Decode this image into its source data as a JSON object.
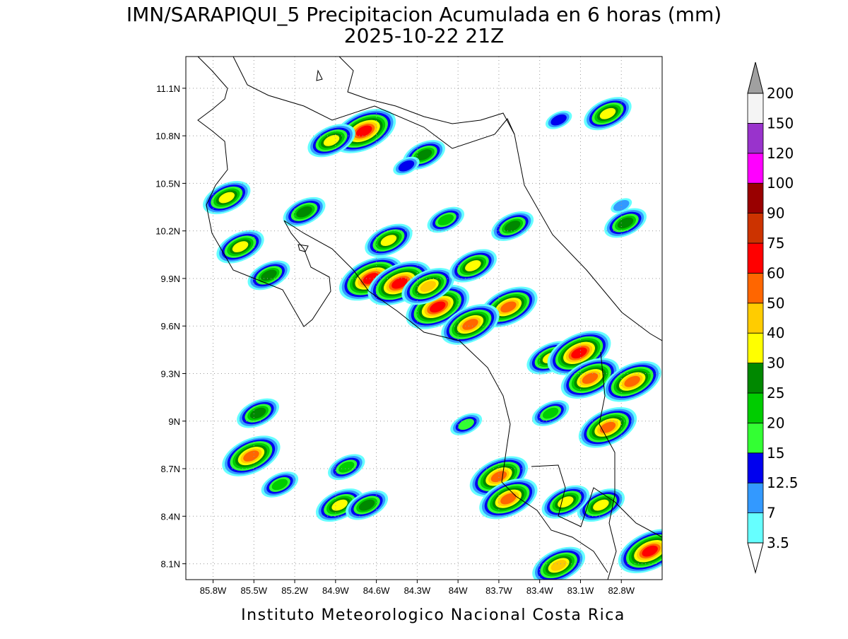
{
  "chart_data": {
    "type": "map",
    "title": "IMN/SARAPIQUI_5 Precipitacion Acumulada en 6 horas (mm)",
    "subtitle": "2025-10-22 21Z",
    "footer": "Instituto Meteorologico Nacional Costa Rica",
    "xlim": [
      -86.0,
      -82.5
    ],
    "ylim": [
      8.0,
      11.3
    ],
    "xticks": [
      {
        "value": -85.8,
        "label": "85.8W"
      },
      {
        "value": -85.5,
        "label": "85.5W"
      },
      {
        "value": -85.2,
        "label": "85.2W"
      },
      {
        "value": -84.9,
        "label": "84.9W"
      },
      {
        "value": -84.6,
        "label": "84.6W"
      },
      {
        "value": -84.3,
        "label": "84.3W"
      },
      {
        "value": -84.0,
        "label": "84W"
      },
      {
        "value": -83.7,
        "label": "83.7W"
      },
      {
        "value": -83.4,
        "label": "83.4W"
      },
      {
        "value": -83.1,
        "label": "83.1W"
      },
      {
        "value": -82.8,
        "label": "82.8W"
      }
    ],
    "yticks": [
      {
        "value": 8.1,
        "label": "8.1N"
      },
      {
        "value": 8.4,
        "label": "8.4N"
      },
      {
        "value": 8.7,
        "label": "8.7N"
      },
      {
        "value": 9.0,
        "label": "9N"
      },
      {
        "value": 9.3,
        "label": "9.3N"
      },
      {
        "value": 9.6,
        "label": "9.6N"
      },
      {
        "value": 9.9,
        "label": "9.9N"
      },
      {
        "value": 10.2,
        "label": "10.2N"
      },
      {
        "value": 10.5,
        "label": "10.5N"
      },
      {
        "value": 10.8,
        "label": "10.8N"
      },
      {
        "value": 11.1,
        "label": "11.1N"
      }
    ],
    "grid": true,
    "colorbar": {
      "levels": [
        3.5,
        7,
        12.5,
        15,
        20,
        25,
        30,
        40,
        50,
        60,
        75,
        90,
        100,
        120,
        150,
        200
      ],
      "colors": [
        "#66ffff",
        "#3399ff",
        "#0000ee",
        "#33ff33",
        "#00cc00",
        "#008800",
        "#ffff00",
        "#ffcc00",
        "#ff6600",
        "#ff0000",
        "#cc3300",
        "#990000",
        "#ff00ff",
        "#9933cc",
        "#f4f4f4"
      ],
      "under_color": "#ffffff",
      "over_color": "#a0a0a0"
    },
    "cells": [
      {
        "lon": -84.69,
        "lat": 10.83,
        "mm": 60
      },
      {
        "lon": -84.93,
        "lat": 10.77,
        "mm": 35
      },
      {
        "lon": -85.7,
        "lat": 10.41,
        "mm": 35
      },
      {
        "lon": -85.6,
        "lat": 10.1,
        "mm": 35
      },
      {
        "lon": -84.64,
        "lat": 9.9,
        "mm": 60
      },
      {
        "lon": -84.43,
        "lat": 9.87,
        "mm": 60
      },
      {
        "lon": -84.15,
        "lat": 9.72,
        "mm": 60
      },
      {
        "lon": -84.22,
        "lat": 9.85,
        "mm": 40
      },
      {
        "lon": -84.51,
        "lat": 10.14,
        "mm": 35
      },
      {
        "lon": -83.63,
        "lat": 9.72,
        "mm": 55
      },
      {
        "lon": -83.91,
        "lat": 9.61,
        "mm": 55
      },
      {
        "lon": -83.32,
        "lat": 9.4,
        "mm": 35
      },
      {
        "lon": -83.11,
        "lat": 9.43,
        "mm": 60
      },
      {
        "lon": -83.03,
        "lat": 9.27,
        "mm": 55
      },
      {
        "lon": -82.72,
        "lat": 9.25,
        "mm": 50
      },
      {
        "lon": -82.9,
        "lat": 8.96,
        "mm": 55
      },
      {
        "lon": -82.95,
        "lat": 8.47,
        "mm": 35
      },
      {
        "lon": -83.7,
        "lat": 8.65,
        "mm": 55
      },
      {
        "lon": -83.63,
        "lat": 8.51,
        "mm": 55
      },
      {
        "lon": -83.21,
        "lat": 8.49,
        "mm": 30
      },
      {
        "lon": -83.26,
        "lat": 8.09,
        "mm": 40
      },
      {
        "lon": -82.59,
        "lat": 8.18,
        "mm": 60
      },
      {
        "lon": -82.9,
        "lat": 10.94,
        "mm": 35
      },
      {
        "lon": -84.25,
        "lat": 10.68,
        "mm": 25
      },
      {
        "lon": -83.89,
        "lat": 9.98,
        "mm": 35
      },
      {
        "lon": -84.87,
        "lat": 8.47,
        "mm": 35
      },
      {
        "lon": -84.67,
        "lat": 8.47,
        "mm": 25
      },
      {
        "lon": -85.52,
        "lat": 8.78,
        "mm": 55
      },
      {
        "lon": -85.47,
        "lat": 9.05,
        "mm": 25
      },
      {
        "lon": -85.31,
        "lat": 8.6,
        "mm": 20
      },
      {
        "lon": -84.82,
        "lat": 8.71,
        "mm": 20
      },
      {
        "lon": -83.94,
        "lat": 8.98,
        "mm": 15
      },
      {
        "lon": -83.6,
        "lat": 10.23,
        "mm": 25
      },
      {
        "lon": -82.77,
        "lat": 10.25,
        "mm": 25
      },
      {
        "lon": -82.8,
        "lat": 10.36,
        "mm": 10
      },
      {
        "lon": -83.26,
        "lat": 10.9,
        "mm": 12.5
      },
      {
        "lon": -84.09,
        "lat": 10.27,
        "mm": 20
      },
      {
        "lon": -85.39,
        "lat": 9.92,
        "mm": 25
      },
      {
        "lon": -85.13,
        "lat": 10.32,
        "mm": 25
      },
      {
        "lon": -83.32,
        "lat": 9.05,
        "mm": 20
      },
      {
        "lon": -84.38,
        "lat": 10.61,
        "mm": 14
      }
    ]
  }
}
